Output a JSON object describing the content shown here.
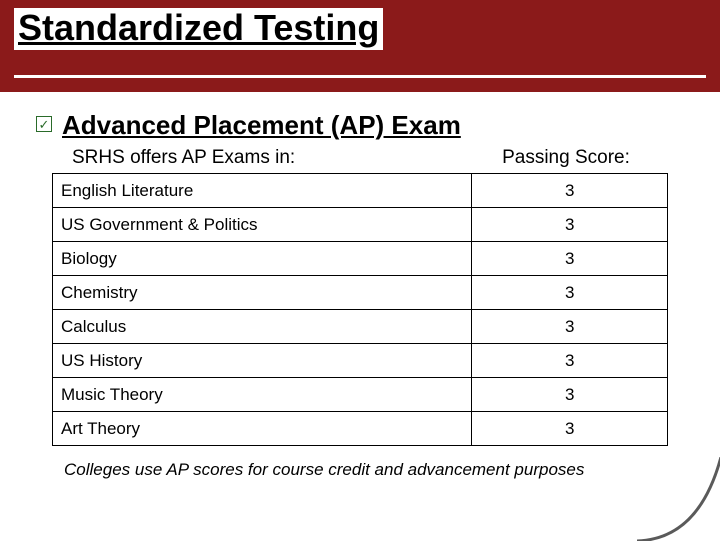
{
  "slide": {
    "title": "Standardized Testing",
    "title_bg": "#8b1a1a",
    "subheading": "Advanced Placement (AP) Exam",
    "table_header_left": "SRHS offers AP Exams in:",
    "table_header_right": "Passing Score:",
    "rows": [
      {
        "subject": "English Literature",
        "score": "3"
      },
      {
        "subject": "US Government & Politics",
        "score": "3"
      },
      {
        "subject": "Biology",
        "score": "3"
      },
      {
        "subject": "Chemistry",
        "score": "3"
      },
      {
        "subject": "Calculus",
        "score": "3"
      },
      {
        "subject": "US History",
        "score": "3"
      },
      {
        "subject": "Music Theory",
        "score": "3"
      },
      {
        "subject": "Art Theory",
        "score": "3"
      }
    ],
    "footnote": "Colleges use AP scores for course credit and advancement purposes"
  },
  "style": {
    "title_fontsize": 36,
    "subheading_fontsize": 26,
    "body_fontsize": 17,
    "header_fontsize": 19,
    "border_color": "#000000",
    "bg_color": "#ffffff",
    "check_color": "#2a6b2a",
    "corner_color": "#5a5a5a"
  }
}
